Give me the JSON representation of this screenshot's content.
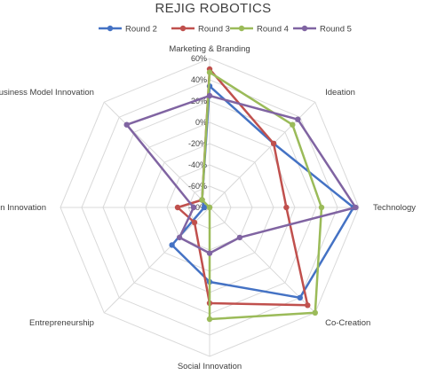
{
  "chart_data": {
    "type": "radar",
    "title": "REJIG ROBOTICS",
    "categories": [
      "Marketing & Branding",
      "Ideation",
      "Technology",
      "Co-Creation",
      "Social Innovation",
      "Entrepreneurship",
      "Open Innovation",
      "Business Model Innovation"
    ],
    "rlim": [
      -80,
      60
    ],
    "ticks": [
      "60%",
      "40%",
      "20%",
      "0%",
      "-20%",
      "-40%",
      "-60%",
      "-80%"
    ],
    "tick_values": [
      60,
      40,
      20,
      0,
      -20,
      -40,
      -60,
      -80
    ],
    "grid": true,
    "legend_position": "top",
    "series": [
      {
        "name": "Round 2",
        "color": "#4472C4",
        "values": [
          34,
          5,
          55,
          40,
          -10,
          -30,
          -75,
          -70
        ]
      },
      {
        "name": "Round 3",
        "color": "#C0504D",
        "values": [
          50,
          5,
          -8,
          50,
          10,
          -60,
          -50,
          -70
        ]
      },
      {
        "name": "Round 4",
        "color": "#9BBB59",
        "values": [
          47,
          30,
          25,
          60,
          25,
          -80,
          -80,
          -70
        ]
      },
      {
        "name": "Round 5",
        "color": "#8064A2",
        "values": [
          25,
          37,
          57,
          -40,
          -37,
          -40,
          -65,
          30
        ]
      }
    ]
  }
}
